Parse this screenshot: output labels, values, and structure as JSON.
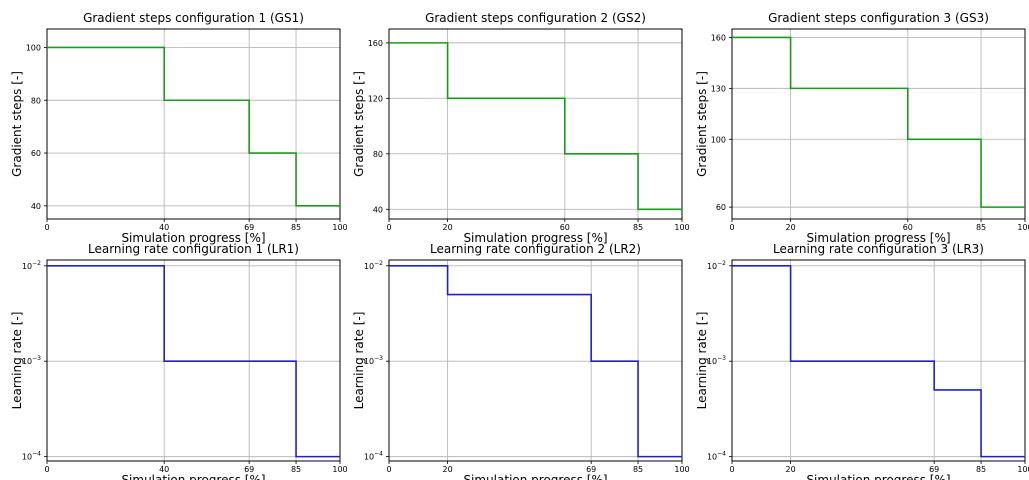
{
  "chart_data": [
    {
      "type": "line",
      "step": true,
      "title": "Gradient steps configuration 1 (GS1)",
      "xlabel": "Simulation progress [%]",
      "ylabel": "Gradient steps [-]",
      "color": "#1a9a1a",
      "yscale": "linear",
      "xlim": [
        0,
        100
      ],
      "ylim": [
        35,
        107
      ],
      "xticks": [
        0,
        40,
        69,
        85,
        100
      ],
      "yticks": [
        40,
        60,
        80,
        100
      ],
      "x": [
        0,
        40,
        40,
        69,
        69,
        85,
        85,
        100
      ],
      "y": [
        100,
        100,
        80,
        80,
        60,
        60,
        40,
        40
      ]
    },
    {
      "type": "line",
      "step": true,
      "title": "Gradient steps configuration 2 (GS2)",
      "xlabel": "Simulation progress [%]",
      "ylabel": "Gradient steps [-]",
      "color": "#1a9a1a",
      "yscale": "linear",
      "xlim": [
        0,
        100
      ],
      "ylim": [
        33,
        170
      ],
      "xticks": [
        0,
        20,
        60,
        85,
        100
      ],
      "yticks": [
        40,
        80,
        120,
        160
      ],
      "x": [
        0,
        20,
        20,
        60,
        60,
        85,
        85,
        100
      ],
      "y": [
        160,
        160,
        120,
        120,
        80,
        80,
        40,
        40
      ]
    },
    {
      "type": "line",
      "step": true,
      "title": "Gradient steps configuration 3 (GS3)",
      "xlabel": "Simulation progress [%]",
      "ylabel": "Gradient steps [-]",
      "color": "#1a9a1a",
      "yscale": "linear",
      "xlim": [
        0,
        100
      ],
      "ylim": [
        53,
        165
      ],
      "xticks": [
        0,
        20,
        60,
        85,
        100
      ],
      "yticks": [
        60,
        100,
        130,
        160
      ],
      "x": [
        0,
        20,
        20,
        60,
        60,
        85,
        85,
        100
      ],
      "y": [
        160,
        160,
        130,
        130,
        100,
        100,
        60,
        60
      ]
    },
    {
      "type": "line",
      "step": true,
      "title": "Learning rate configuration 1 (LR1)",
      "xlabel": "Simulation progress [%]",
      "ylabel": "Learning rate [-]",
      "color": "#2020cc",
      "yscale": "log",
      "xlim": [
        0,
        100
      ],
      "ylim": [
        9e-05,
        0.0115
      ],
      "xticks": [
        0,
        40,
        69,
        85,
        100
      ],
      "yticks": [
        0.0001,
        0.001,
        0.01
      ],
      "x": [
        0,
        40,
        40,
        85,
        85,
        100
      ],
      "y": [
        0.01,
        0.01,
        0.001,
        0.001,
        0.0001,
        0.0001
      ]
    },
    {
      "type": "line",
      "step": true,
      "title": "Learning rate configuration 2 (LR2)",
      "xlabel": "Simulation progress [%]",
      "ylabel": "Learning rate [-]",
      "color": "#2020cc",
      "yscale": "log",
      "xlim": [
        0,
        100
      ],
      "ylim": [
        9e-05,
        0.0115
      ],
      "xticks": [
        0,
        20,
        69,
        85,
        100
      ],
      "yticks": [
        0.0001,
        0.001,
        0.01
      ],
      "x": [
        0,
        20,
        20,
        69,
        69,
        85,
        85,
        100
      ],
      "y": [
        0.01,
        0.01,
        0.005,
        0.005,
        0.001,
        0.001,
        0.0001,
        0.0001
      ]
    },
    {
      "type": "line",
      "step": true,
      "title": "Learning rate configuration 3 (LR3)",
      "xlabel": "Simulation progress [%]",
      "ylabel": "Learning rate [-]",
      "color": "#2020cc",
      "yscale": "log",
      "xlim": [
        0,
        100
      ],
      "ylim": [
        9e-05,
        0.0115
      ],
      "xticks": [
        0,
        20,
        69,
        85,
        100
      ],
      "yticks": [
        0.0001,
        0.001,
        0.01
      ],
      "x": [
        0,
        20,
        20,
        69,
        69,
        85,
        85,
        100
      ],
      "y": [
        0.01,
        0.01,
        0.001,
        0.001,
        0.0005,
        0.0005,
        0.0001,
        0.0001
      ]
    }
  ]
}
